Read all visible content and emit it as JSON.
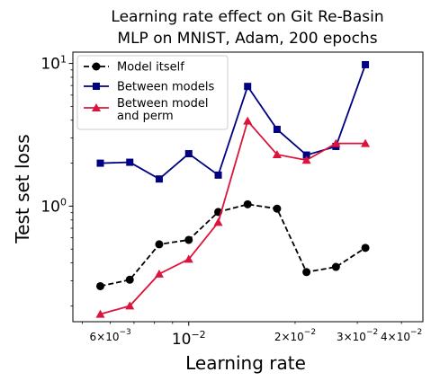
{
  "chart_data": {
    "type": "line",
    "title_lines": [
      "Learning rate effect on Git Re-Basin",
      "MLP on MNIST, Adam, 200 epochs"
    ],
    "xlabel": "Learning rate",
    "ylabel": "Test set loss",
    "x_scale": "log",
    "y_scale": "log",
    "xlim": [
      0.0047,
      0.046
    ],
    "ylim": [
      0.155,
      12.0
    ],
    "grid": false,
    "legend_position": "top-left",
    "x_ticks_major": [
      {
        "value": 0.01,
        "base": "10",
        "exp": "−2"
      }
    ],
    "x_ticks_minor_labeled": [
      {
        "value": 0.006,
        "coef": "6×10",
        "exp": "−3"
      },
      {
        "value": 0.02,
        "coef": "2×10",
        "exp": "−2"
      },
      {
        "value": 0.03,
        "coef": "3×10",
        "exp": "−2"
      },
      {
        "value": 0.04,
        "coef": "4×10",
        "exp": "−2"
      }
    ],
    "y_ticks_major": [
      {
        "value": 1,
        "base": "10",
        "exp": "0"
      },
      {
        "value": 10,
        "base": "10",
        "exp": "1"
      }
    ],
    "x": [
      0.00562,
      0.00681,
      0.00825,
      0.01,
      0.01212,
      0.01468,
      0.01778,
      0.02154,
      0.0261,
      0.03162
    ],
    "series": [
      {
        "name": "Model itself",
        "color": "#000000",
        "marker": "circle",
        "dash": true,
        "values": [
          0.275,
          0.305,
          0.54,
          0.58,
          0.91,
          1.03,
          0.96,
          0.345,
          0.375,
          0.51
        ]
      },
      {
        "name": "Between models",
        "color": "#000080",
        "marker": "square",
        "dash": false,
        "values": [
          2.0,
          2.03,
          1.55,
          2.33,
          1.65,
          6.9,
          3.45,
          2.28,
          2.62,
          9.8
        ]
      },
      {
        "name": "Between model\nand perm",
        "color": "#dc143c",
        "marker": "triangle",
        "dash": false,
        "values": [
          0.175,
          0.2,
          0.335,
          0.425,
          0.77,
          3.95,
          2.3,
          2.1,
          2.75,
          2.75
        ]
      }
    ]
  }
}
